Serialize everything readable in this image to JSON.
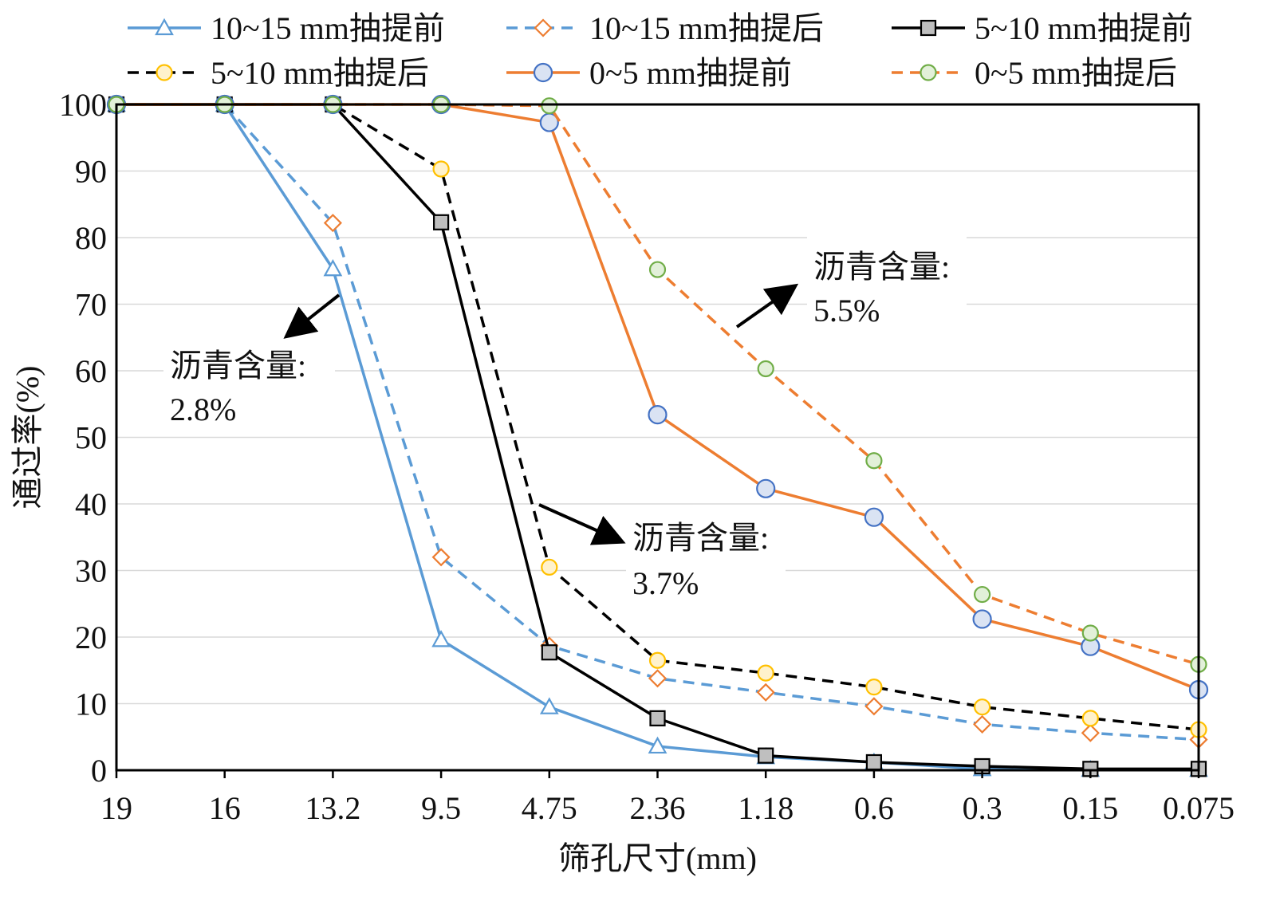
{
  "chart_data": {
    "type": "line",
    "title": "",
    "xlabel": "筛孔尺寸(mm)",
    "ylabel": "通过率(%)",
    "categories": [
      "19",
      "16",
      "13.2",
      "9.5",
      "4.75",
      "2.36",
      "1.18",
      "0.6",
      "0.3",
      "0.15",
      "0.075"
    ],
    "ylim": [
      0,
      100
    ],
    "yticks": [
      "0",
      "10",
      "20",
      "30",
      "40",
      "50",
      "60",
      "70",
      "80",
      "90",
      "100"
    ],
    "grid": "horizontal",
    "legend": "top",
    "series": [
      {
        "name": "10~15 mm抽提前",
        "color": "#5B9BD5",
        "dash": "solid",
        "marker": "triangle",
        "values": [
          100,
          100,
          75.3,
          19.6,
          9.5,
          3.6,
          2.0,
          1.2,
          0.2,
          0.1,
          0.1
        ]
      },
      {
        "name": "10~15 mm抽提后",
        "color": "#5B9BD5",
        "marker_color": "#ED7D31",
        "dash": "dashed",
        "marker": "diamond",
        "values": [
          100,
          100,
          82.2,
          32.0,
          18.7,
          13.8,
          11.7,
          9.6,
          6.9,
          5.6,
          4.6
        ]
      },
      {
        "name": "5~10 mm抽提前",
        "color": "#000000",
        "dash": "solid",
        "marker": "square",
        "values": [
          100,
          100,
          100,
          82.3,
          17.7,
          7.8,
          2.2,
          1.2,
          0.6,
          0.2,
          0.2
        ]
      },
      {
        "name": "5~10 mm抽提后",
        "color": "#000000",
        "marker_color": "#FFC000",
        "dash": "dashed",
        "marker": "circle",
        "values": [
          100,
          100,
          100,
          90.3,
          30.5,
          16.5,
          14.6,
          12.5,
          9.5,
          7.8,
          6.1
        ]
      },
      {
        "name": "0~5 mm抽提前",
        "color": "#ED7D31",
        "marker_color": "#4472C4",
        "dash": "solid",
        "marker": "circle-large",
        "values": [
          100,
          100,
          100,
          100,
          97.3,
          53.4,
          42.3,
          38.0,
          22.7,
          18.6,
          12.1
        ]
      },
      {
        "name": "0~5 mm抽提后",
        "color": "#ED7D31",
        "marker_color": "#70AD47",
        "dash": "dashed",
        "marker": "circle",
        "values": [
          100,
          100,
          100,
          100,
          99.8,
          75.2,
          60.3,
          46.5,
          26.4,
          20.6,
          15.9
        ]
      }
    ],
    "annotations": [
      {
        "label": "沥青含量:",
        "value": "2.8%"
      },
      {
        "label": "沥青含量:",
        "value": "3.7%"
      },
      {
        "label": "沥青含量:",
        "value": "5.5%"
      }
    ]
  }
}
